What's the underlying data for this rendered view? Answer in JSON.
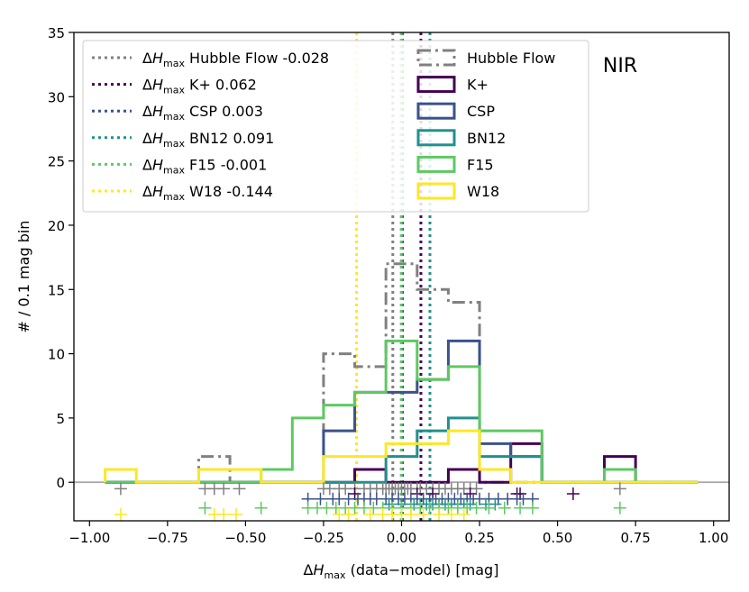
{
  "chart_data": {
    "type": "histogram",
    "title": "",
    "panel_label": "NIR",
    "xlabel": "ΔH_max (data−model) [mag]",
    "xlabel_parts": {
      "delta": "Δ",
      "sym": "H",
      "sub": "max",
      "rest": " (data−model) [mag]"
    },
    "ylabel": "# / 0.1 mag bin",
    "xlim": [
      -1.05,
      1.05
    ],
    "ylim": [
      -3,
      35
    ],
    "xticks": [
      -1.0,
      -0.75,
      -0.5,
      -0.25,
      0.0,
      0.25,
      0.5,
      0.75,
      1.0
    ],
    "xtick_labels": [
      "−1.00",
      "−0.75",
      "−0.50",
      "−0.25",
      "0.00",
      "0.25",
      "0.50",
      "0.75",
      "1.00"
    ],
    "yticks": [
      0,
      5,
      10,
      15,
      20,
      25,
      30,
      35
    ],
    "ytick_labels": [
      "0",
      "5",
      "10",
      "15",
      "20",
      "25",
      "30",
      "35"
    ],
    "bin_edges": [
      -0.95,
      -0.85,
      -0.75,
      -0.65,
      -0.55,
      -0.45,
      -0.35,
      -0.25,
      -0.15,
      -0.05,
      0.05,
      0.15,
      0.25,
      0.35,
      0.45,
      0.55,
      0.65,
      0.75,
      0.85,
      0.95
    ],
    "series": [
      {
        "name": "Hubble Flow",
        "color": "#808080",
        "style": "dashdot",
        "mean": -0.028,
        "mean_label": "-0.028",
        "scatter_y": -0.5,
        "counts": [
          0,
          0,
          0,
          2,
          0,
          0,
          0,
          10,
          9,
          17,
          15,
          14,
          0,
          0,
          0,
          0,
          0,
          0,
          0
        ],
        "points": [
          -0.9,
          -0.63,
          -0.6,
          -0.57,
          -0.52,
          -0.25,
          -0.23,
          -0.2,
          -0.18,
          -0.15,
          -0.12,
          -0.1,
          -0.08,
          -0.06,
          -0.05,
          -0.04,
          -0.03,
          -0.02,
          -0.01,
          0.0,
          0.01,
          0.02,
          0.03,
          0.05,
          0.06,
          0.08,
          0.1,
          0.12,
          0.14,
          0.16,
          0.18,
          0.2,
          0.22,
          0.24,
          0.7
        ]
      },
      {
        "name": "K+",
        "color": "#440154",
        "style": "solid",
        "mean": 0.062,
        "mean_label": "0.062",
        "scatter_y": -0.9,
        "counts": [
          0,
          0,
          0,
          0,
          0,
          0,
          0,
          0,
          1,
          0,
          0,
          1,
          0,
          3,
          0,
          0,
          2,
          0,
          0
        ],
        "points": [
          -0.15,
          0.05,
          0.1,
          0.22,
          0.37,
          0.38,
          0.55
        ]
      },
      {
        "name": "CSP",
        "color": "#3b528b",
        "style": "solid",
        "mean": 0.003,
        "mean_label": "0.003",
        "scatter_y": -1.3,
        "counts": [
          0,
          0,
          0,
          0,
          0,
          0,
          0,
          4,
          7,
          7,
          8,
          11,
          3,
          2,
          0,
          0,
          0,
          0,
          0
        ],
        "points": [
          -0.3,
          -0.26,
          -0.22,
          -0.2,
          -0.17,
          -0.14,
          -0.12,
          -0.1,
          -0.08,
          -0.05,
          -0.03,
          -0.01,
          0.01,
          0.03,
          0.05,
          0.07,
          0.09,
          0.11,
          0.13,
          0.15,
          0.17,
          0.19,
          0.21,
          0.23,
          0.25,
          0.28,
          0.31,
          0.34,
          0.37,
          0.39,
          0.42
        ]
      },
      {
        "name": "BN12",
        "color": "#21918c",
        "style": "solid",
        "mean": 0.091,
        "mean_label": "0.091",
        "scatter_y": -1.7,
        "counts": [
          0,
          0,
          0,
          0,
          0,
          0,
          0,
          0,
          0,
          2,
          4,
          5,
          2,
          2,
          0,
          0,
          0,
          0,
          0
        ],
        "points": [
          -0.04,
          0.0,
          0.04,
          0.06,
          0.08,
          0.1,
          0.12,
          0.14,
          0.16,
          0.18,
          0.2,
          0.22,
          0.27,
          0.3
        ]
      },
      {
        "name": "F15",
        "color": "#5ec962",
        "style": "solid",
        "mean": -0.001,
        "mean_label": "-0.001",
        "scatter_y": -2.0,
        "counts": [
          0,
          0,
          0,
          0,
          0,
          1,
          5,
          6,
          7,
          11,
          8,
          9,
          4,
          4,
          0,
          0,
          1,
          0,
          0
        ],
        "points": [
          -0.63,
          -0.45,
          -0.3,
          -0.27,
          -0.24,
          -0.21,
          -0.18,
          -0.15,
          -0.12,
          -0.09,
          -0.06,
          -0.03,
          0.0,
          0.03,
          0.06,
          0.09,
          0.12,
          0.15,
          0.18,
          0.21,
          0.24,
          0.28,
          0.33,
          0.38,
          0.42,
          0.7
        ]
      },
      {
        "name": "W18",
        "color": "#fde725",
        "style": "solid",
        "mean": -0.144,
        "mean_label": "-0.144",
        "scatter_y": -2.5,
        "counts": [
          1,
          0,
          0,
          1,
          1,
          0,
          0,
          2,
          2,
          3,
          3,
          4,
          1,
          0,
          0,
          0,
          0,
          0,
          0
        ],
        "points": [
          -0.9,
          -0.6,
          -0.57,
          -0.53,
          -0.2,
          -0.17,
          -0.1,
          -0.06,
          -0.03,
          0.0,
          0.03,
          0.07,
          0.12,
          0.16,
          0.2
        ]
      }
    ],
    "legend_mean_prefix": {
      "delta": "Δ",
      "sym": "H",
      "sub": "max"
    },
    "legend_position": "top-left",
    "grid": false
  }
}
